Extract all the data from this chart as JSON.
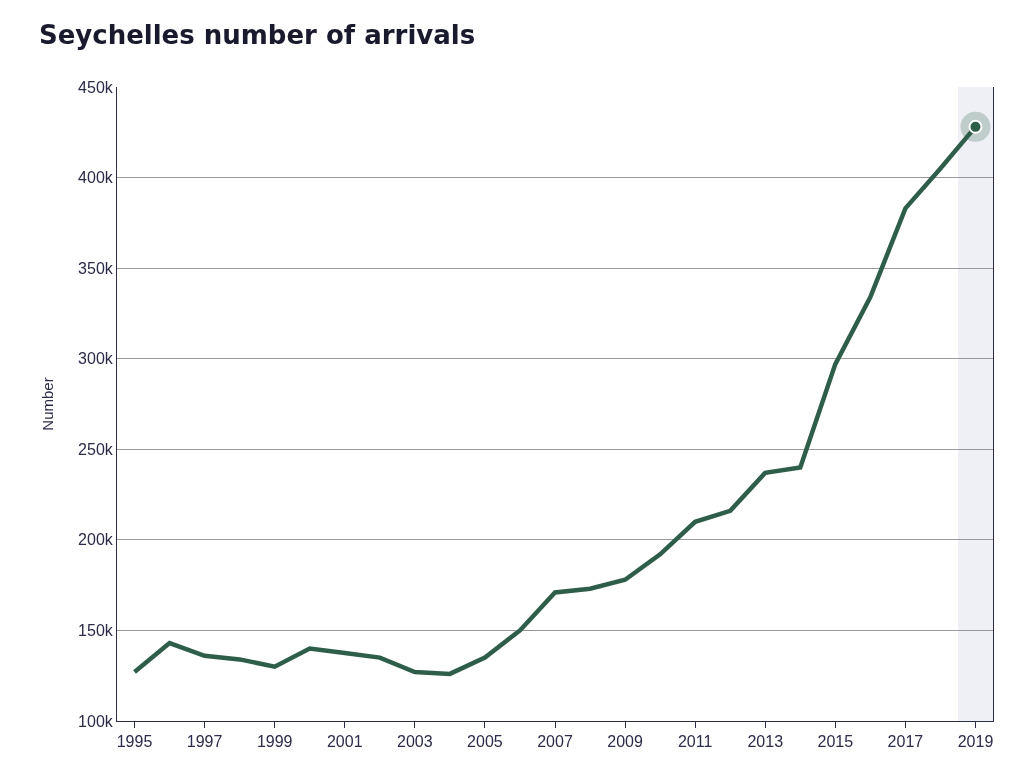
{
  "chart_data": {
    "type": "line",
    "title": "Seychelles number of arrivals",
    "ylabel": "Number",
    "x": [
      1995,
      1996,
      1997,
      1998,
      1999,
      2000,
      2001,
      2002,
      2003,
      2004,
      2005,
      2006,
      2007,
      2008,
      2009,
      2010,
      2011,
      2012,
      2013,
      2014,
      2015,
      2016,
      2017,
      2018,
      2019
    ],
    "series": [
      {
        "color": "#2e5e4a",
        "values": [
          127000,
          143000,
          136000,
          134000,
          130000,
          140000,
          137500,
          135000,
          127000,
          126000,
          135000,
          150000,
          171000,
          173000,
          178000,
          192000,
          210000,
          216000,
          237000,
          240000,
          297000,
          334000,
          383000,
          405000,
          428000
        ]
      },
      {
        "type": "scatter",
        "color": "#2e5e4a",
        "x": [
          2019
        ],
        "values": [
          428000
        ]
      }
    ],
    "xlim": [
      1994.5,
      2019.5
    ],
    "xticks": [
      1995,
      1997,
      1999,
      2001,
      2003,
      2005,
      2007,
      2009,
      2011,
      2013,
      2015,
      2017,
      2019
    ],
    "ylim": [
      100000,
      450000
    ],
    "yticks": [
      {
        "value": 100000,
        "label": "100k"
      },
      {
        "value": 150000,
        "label": "150k"
      },
      {
        "value": 200000,
        "label": "200k"
      },
      {
        "value": 250000,
        "label": "250k"
      },
      {
        "value": 300000,
        "label": "300k"
      },
      {
        "value": 350000,
        "label": "350k"
      },
      {
        "value": 400000,
        "label": "400k"
      },
      {
        "value": 450000,
        "label": "450k"
      }
    ],
    "bands": [
      {
        "axis": "x",
        "from": 2018.5,
        "to": 2019.5,
        "color": "#eef0f5"
      }
    ],
    "grid": "y"
  }
}
